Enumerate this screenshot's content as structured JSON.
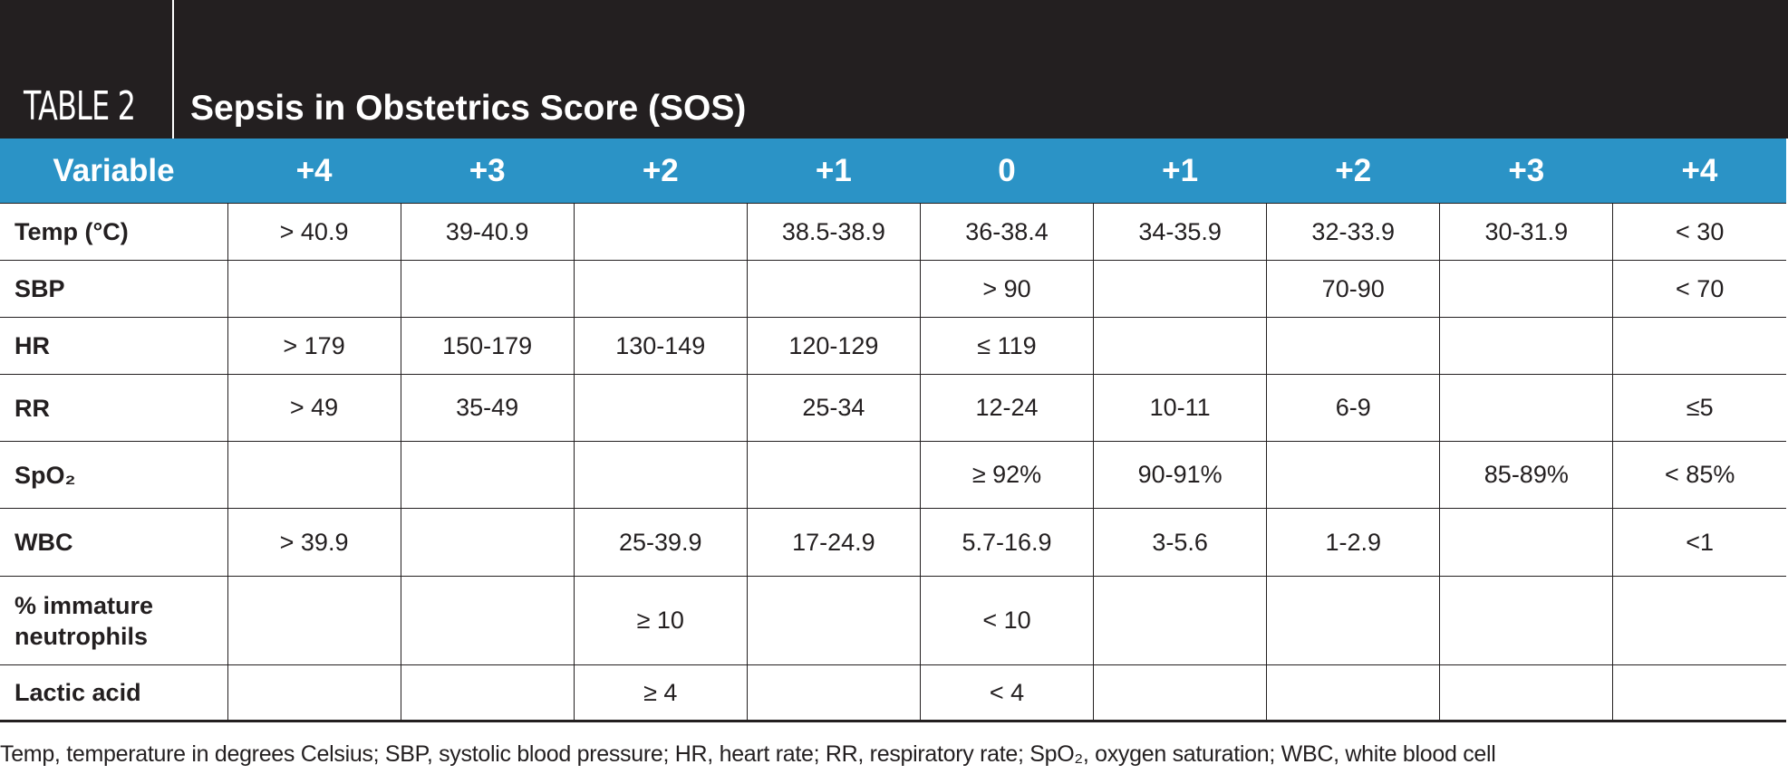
{
  "header": {
    "label": "TABLE 2",
    "title": "Sepsis in Obstetrics Score (SOS)"
  },
  "table": {
    "columns": [
      "Variable",
      "+4",
      "+3",
      "+2",
      "+1",
      "0",
      "+1",
      "+2",
      "+3",
      "+4"
    ],
    "rows": [
      [
        "Temp (°C)",
        "> 40.9",
        "39-40.9",
        null,
        "38.5-38.9",
        "36-38.4",
        "34-35.9",
        "32-33.9",
        "30-31.9",
        "< 30"
      ],
      [
        "SBP",
        null,
        null,
        null,
        null,
        "> 90",
        null,
        "70-90",
        null,
        "< 70"
      ],
      [
        "HR",
        "> 179",
        "150-179",
        "130-149",
        "120-129",
        "≤ 119",
        null,
        null,
        null,
        null
      ],
      [
        "RR",
        "> 49",
        "35-49",
        null,
        "25-34",
        "12-24",
        "10-11",
        "6-9",
        null,
        "≤5"
      ],
      [
        "SpO₂",
        null,
        null,
        null,
        null,
        "≥ 92%",
        "90-91%",
        null,
        "85-89%",
        "< 85%"
      ],
      [
        "WBC",
        "> 39.9",
        null,
        "25-39.9",
        "17-24.9",
        "5.7-16.9",
        "3-5.6",
        "1-2.9",
        null,
        "<1"
      ],
      [
        "% immature neutrophils",
        null,
        null,
        "≥ 10",
        null,
        "< 10",
        null,
        null,
        null,
        null
      ],
      [
        "Lactic acid",
        null,
        null,
        "≥ 4",
        null,
        "< 4",
        null,
        null,
        null,
        null
      ]
    ]
  },
  "footnote": "Temp, temperature in degrees Celsius; SBP, systolic blood pressure; HR, heart rate; RR, respiratory rate; SpO₂, oxygen saturation; WBC, white blood cell"
}
